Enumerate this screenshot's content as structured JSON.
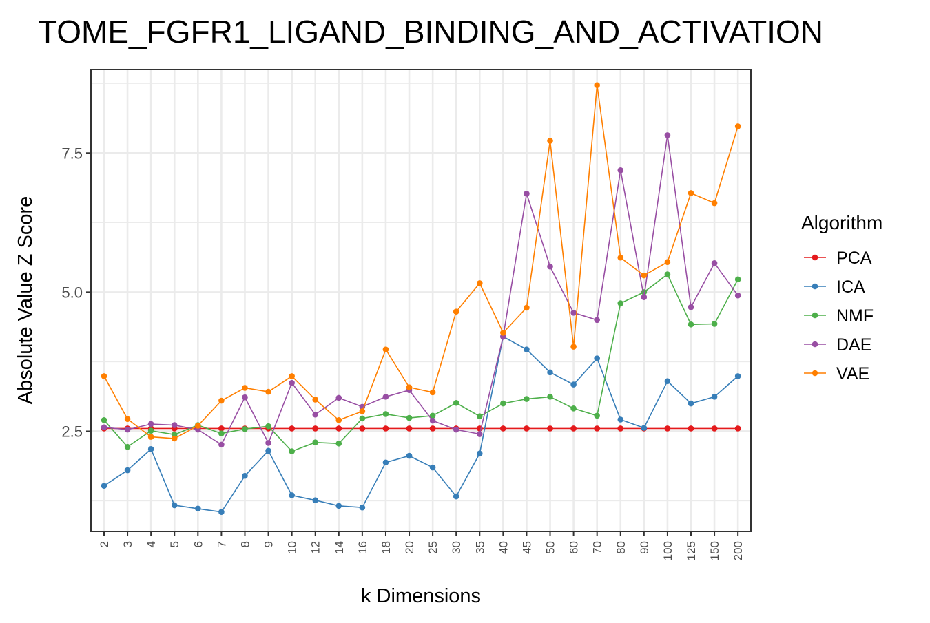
{
  "chart_data": {
    "type": "line",
    "title": "TOME_FGFR1_LIGAND_BINDING_AND_ACTIVATION",
    "xlabel": "k Dimensions",
    "ylabel": "Absolute Value Z Score",
    "categories": [
      "2",
      "3",
      "4",
      "5",
      "6",
      "7",
      "8",
      "9",
      "10",
      "12",
      "14",
      "16",
      "18",
      "20",
      "25",
      "30",
      "35",
      "40",
      "45",
      "50",
      "60",
      "70",
      "80",
      "90",
      "100",
      "125",
      "150",
      "200"
    ],
    "ylim": [
      0.7,
      9.0
    ],
    "y_ticks": [
      "2.5",
      "5.0",
      "7.5"
    ],
    "y_tick_values": [
      2.5,
      5.0,
      7.5
    ],
    "grid": true,
    "legend": {
      "title": "Algorithm",
      "position": "right"
    },
    "series": [
      {
        "name": "PCA",
        "color": "#e41a1c",
        "values": [
          2.55,
          2.55,
          2.55,
          2.55,
          2.55,
          2.55,
          2.55,
          2.55,
          2.55,
          2.55,
          2.55,
          2.55,
          2.55,
          2.55,
          2.55,
          2.55,
          2.55,
          2.55,
          2.55,
          2.55,
          2.55,
          2.55,
          2.55,
          2.55,
          2.55,
          2.55,
          2.55,
          2.55
        ]
      },
      {
        "name": "ICA",
        "color": "#377eb8",
        "values": [
          1.52,
          1.8,
          2.18,
          1.17,
          1.11,
          1.05,
          1.7,
          2.15,
          1.35,
          1.26,
          1.16,
          1.13,
          1.94,
          2.06,
          1.85,
          1.33,
          2.1,
          4.2,
          3.97,
          3.56,
          3.34,
          3.81,
          2.71,
          2.56,
          3.4,
          3.0,
          3.12,
          3.49
        ]
      },
      {
        "name": "NMF",
        "color": "#4daf4a",
        "values": [
          2.7,
          2.22,
          2.51,
          2.44,
          2.61,
          2.46,
          2.54,
          2.59,
          2.14,
          2.3,
          2.28,
          2.73,
          2.81,
          2.74,
          2.78,
          3.01,
          2.77,
          3.0,
          3.08,
          3.12,
          2.91,
          2.78,
          4.8,
          5.0,
          5.32,
          4.42,
          4.43,
          5.23
        ]
      },
      {
        "name": "DAE",
        "color": "#984ea3",
        "values": [
          2.57,
          2.53,
          2.63,
          2.61,
          2.53,
          2.26,
          3.11,
          2.29,
          3.37,
          2.8,
          3.1,
          2.94,
          3.12,
          3.24,
          2.69,
          2.53,
          2.45,
          4.2,
          6.77,
          5.46,
          4.63,
          4.5,
          7.19,
          4.91,
          7.82,
          4.73,
          5.52,
          4.94
        ]
      },
      {
        "name": "VAE",
        "color": "#ff7f00",
        "values": [
          3.49,
          2.72,
          2.4,
          2.37,
          2.6,
          3.05,
          3.28,
          3.21,
          3.49,
          3.07,
          2.7,
          2.86,
          3.97,
          3.29,
          3.2,
          4.65,
          5.16,
          4.27,
          4.72,
          7.72,
          4.02,
          8.72,
          5.62,
          5.3,
          5.54,
          6.78,
          6.6,
          7.98
        ]
      }
    ]
  }
}
